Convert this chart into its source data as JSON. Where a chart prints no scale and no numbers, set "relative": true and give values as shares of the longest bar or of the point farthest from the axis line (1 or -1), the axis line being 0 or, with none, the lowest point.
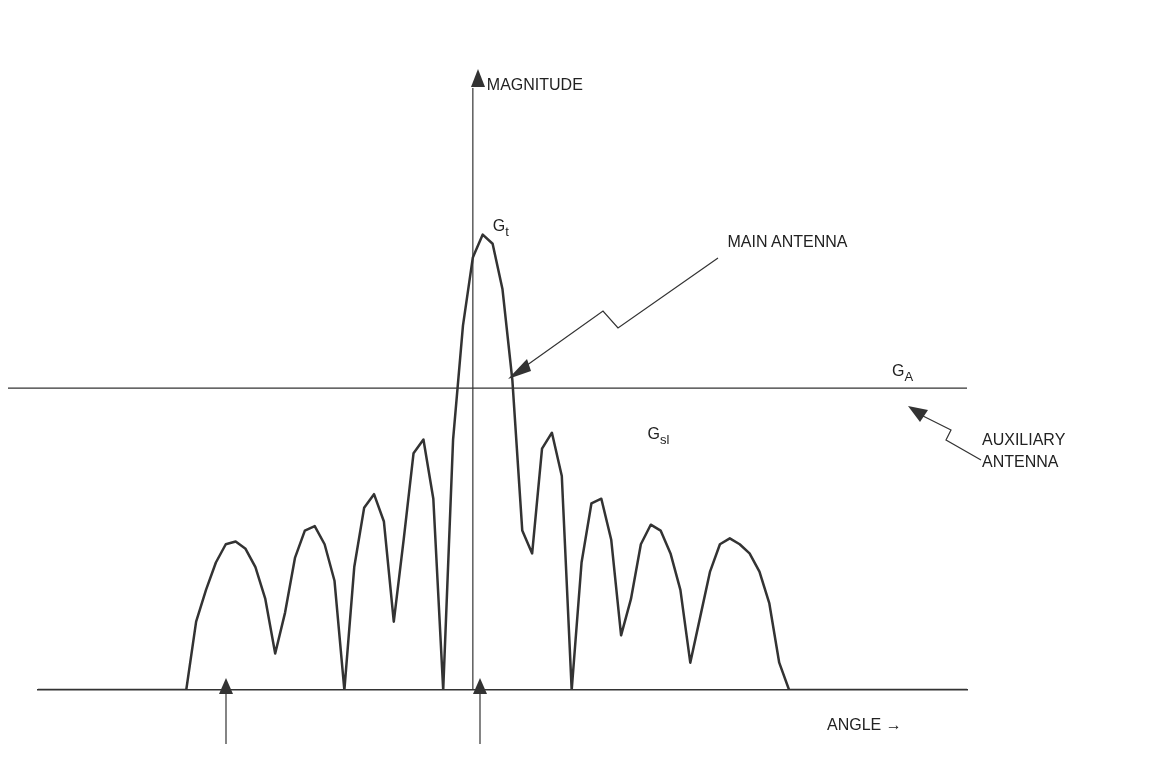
{
  "chart_data": {
    "type": "line",
    "relative": true,
    "xlabel": "ANGLE →",
    "categories": [
      null,
      null,
      null,
      null,
      null,
      null,
      null,
      null,
      null,
      null,
      null,
      null,
      null,
      null,
      null,
      null,
      null,
      null,
      null,
      null,
      null,
      null,
      null,
      null,
      null,
      null,
      null,
      null,
      null,
      null,
      null,
      null,
      null,
      null,
      null,
      null,
      null,
      null,
      null,
      null,
      null,
      null,
      null,
      null,
      null,
      null,
      null,
      null,
      null,
      null,
      null,
      null,
      null,
      null,
      null,
      null,
      null,
      null,
      null,
      null,
      null,
      null,
      null,
      null,
      null,
      null,
      null,
      null,
      null,
      null,
      null,
      null,
      null,
      null,
      null,
      null,
      null,
      null,
      null,
      null,
      null,
      null,
      null,
      null,
      null,
      null,
      null,
      null,
      null,
      null,
      null,
      null,
      null,
      null,
      null
    ],
    "series": [
      {
        "color": "#333333",
        "values": [
          0,
          0,
          0,
          0,
          0,
          0,
          0,
          0,
          0,
          0,
          0,
          0,
          0,
          0,
          0,
          0,
          0.15,
          0.22,
          0.28,
          0.32,
          0.326,
          0.31,
          0.27,
          0.2,
          0.08,
          0.17,
          0.29,
          0.35,
          0.36,
          0.32,
          0.24,
          0,
          0.27,
          0.4,
          0.43,
          0.37,
          0.15,
          0.33,
          0.52,
          0.55,
          0.42,
          0,
          0.55,
          0.8,
          0.95,
          1,
          0.98,
          0.88,
          0.68,
          0.35,
          0.3,
          0.53,
          0.565,
          0.47,
          0,
          0.28,
          0.41,
          0.42,
          0.33,
          0.12,
          0.2,
          0.32,
          0.363,
          0.35,
          0.3,
          0.22,
          0.06,
          0.16,
          0.26,
          0.32,
          0.333,
          0.32,
          0.3,
          0.26,
          0.19,
          0.06,
          0,
          0,
          0,
          0,
          0,
          0,
          0,
          0,
          0,
          0,
          0,
          0,
          0,
          0,
          0,
          0,
          0,
          0,
          0
        ]
      }
    ],
    "ref_lines": [
      {
        "axis": "y",
        "value": 0.663,
        "label": "G$_{A}$",
        "color": "#333333"
      }
    ],
    "annotations": [
      "MAGNITUDE",
      "G$_{t}$",
      "G$_{sl}$",
      "MAIN ANTENNA",
      "AUXILIARY ANTENNA"
    ],
    "grid": false,
    "legend": false
  }
}
